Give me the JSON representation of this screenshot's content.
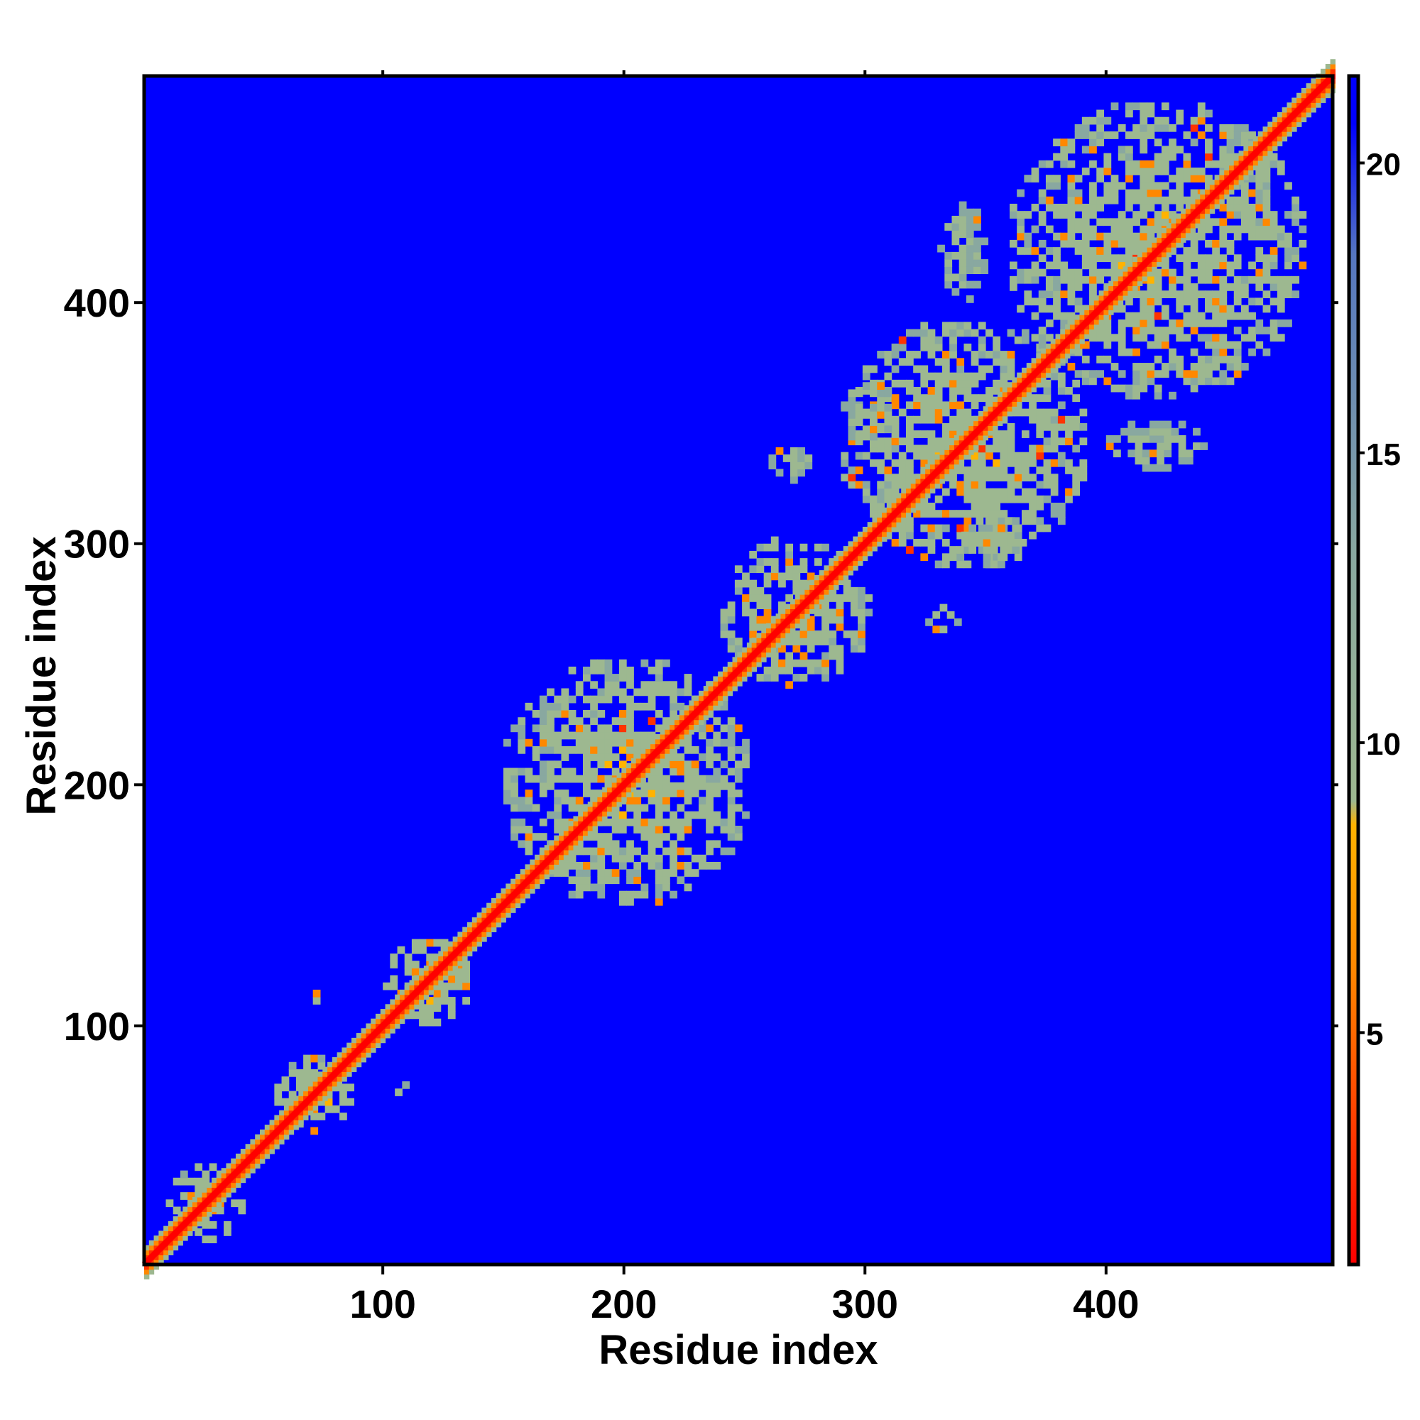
{
  "chart_data": {
    "type": "heatmap",
    "title": "",
    "xlabel": "Residue index",
    "ylabel": "Residue index",
    "xlim": [
      1,
      494
    ],
    "ylim": [
      1,
      494
    ],
    "x_ticks": [
      100,
      200,
      300,
      400
    ],
    "y_ticks": [
      100,
      200,
      300,
      400
    ],
    "colorbar": {
      "range": [
        1,
        21.5
      ],
      "ticks": [
        5,
        10,
        15,
        20
      ],
      "colors": [
        "#ff0000",
        "#ff3300",
        "#ff8800",
        "#ffb300",
        "#9db890",
        "#89a8a0",
        "#5576c0",
        "#0000ff"
      ]
    },
    "background_value": 21,
    "diagonal_value": 1,
    "contact_regions": [
      {
        "x": [
          10,
          40
        ],
        "y": [
          10,
          40
        ],
        "value": 9
      },
      {
        "x": [
          55,
          85
        ],
        "y": [
          55,
          85
        ],
        "value": 9
      },
      {
        "x": [
          68,
          74
        ],
        "y": [
          106,
          112
        ],
        "value": 11
      },
      {
        "x": [
          105,
          111
        ],
        "y": [
          68,
          74
        ],
        "value": 11
      },
      {
        "x": [
          100,
          135
        ],
        "y": [
          100,
          135
        ],
        "value": 9
      },
      {
        "x": [
          150,
          250
        ],
        "y": [
          150,
          250
        ],
        "value": 10
      },
      {
        "x": [
          240,
          300
        ],
        "y": [
          240,
          300
        ],
        "value": 10
      },
      {
        "x": [
          260,
          275
        ],
        "y": [
          325,
          340
        ],
        "value": 11
      },
      {
        "x": [
          325,
          340
        ],
        "y": [
          260,
          275
        ],
        "value": 11
      },
      {
        "x": [
          290,
          390
        ],
        "y": [
          290,
          390
        ],
        "value": 10
      },
      {
        "x": [
          340,
          365
        ],
        "y": [
          290,
          310
        ],
        "value": 11
      },
      {
        "x": [
          290,
          310
        ],
        "y": [
          340,
          365
        ],
        "value": 11
      },
      {
        "x": [
          360,
          480
        ],
        "y": [
          360,
          480
        ],
        "value": 10
      },
      {
        "x": [
          400,
          440
        ],
        "y": [
          330,
          350
        ],
        "value": 12
      },
      {
        "x": [
          330,
          350
        ],
        "y": [
          400,
          440
        ],
        "value": 12
      }
    ]
  }
}
